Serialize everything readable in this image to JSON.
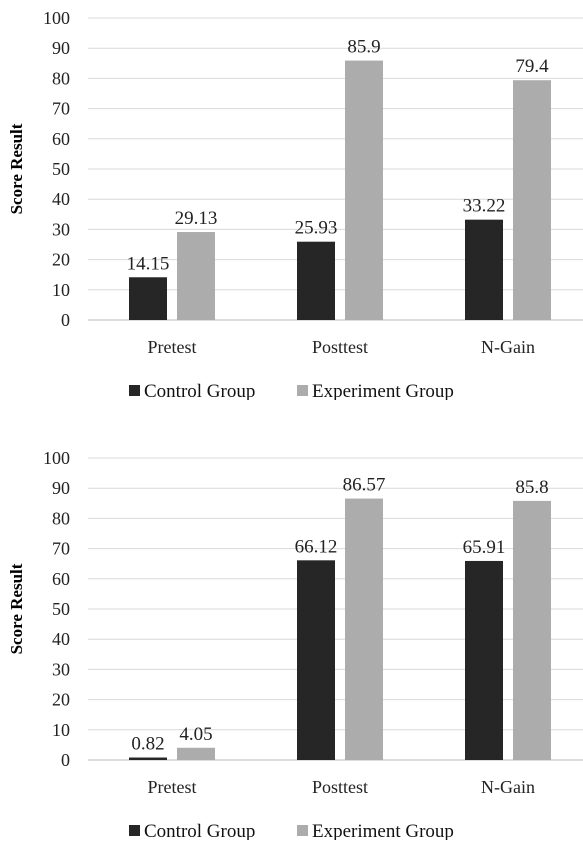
{
  "chart_data": [
    {
      "type": "bar",
      "categories": [
        "Pretest",
        "Posttest",
        "N-Gain"
      ],
      "series": [
        {
          "name": "Control Group",
          "values": [
            14.15,
            25.93,
            33.22
          ],
          "color": "#262626"
        },
        {
          "name": "Experiment Group",
          "values": [
            29.13,
            85.9,
            79.4
          ],
          "color": "#acacac"
        }
      ],
      "data_labels": [
        [
          "14.15",
          "25.93",
          "33.22"
        ],
        [
          "29.13",
          "85.9",
          "79.4"
        ]
      ],
      "yticks": [
        "0",
        "10",
        "20",
        "30",
        "40",
        "50",
        "60",
        "70",
        "80",
        "90",
        "100"
      ],
      "ylabel": "Score Result",
      "ylim": [
        0,
        100
      ],
      "grid": true,
      "legend": "bottom"
    },
    {
      "type": "bar",
      "categories": [
        "Pretest",
        "Posttest",
        "N-Gain"
      ],
      "series": [
        {
          "name": "Control Group",
          "values": [
            0.82,
            66.12,
            65.91
          ],
          "color": "#262626"
        },
        {
          "name": "Experiment Group",
          "values": [
            4.05,
            86.57,
            85.8
          ],
          "color": "#acacac"
        }
      ],
      "data_labels": [
        [
          "0.82",
          "66.12",
          "65.91"
        ],
        [
          "4.05",
          "86.57",
          "85.8"
        ]
      ],
      "yticks": [
        "0",
        "10",
        "20",
        "30",
        "40",
        "50",
        "60",
        "70",
        "80",
        "90",
        "100"
      ],
      "ylabel": "Score Result",
      "ylim": [
        0,
        100
      ],
      "grid": true,
      "legend": "bottom"
    }
  ]
}
